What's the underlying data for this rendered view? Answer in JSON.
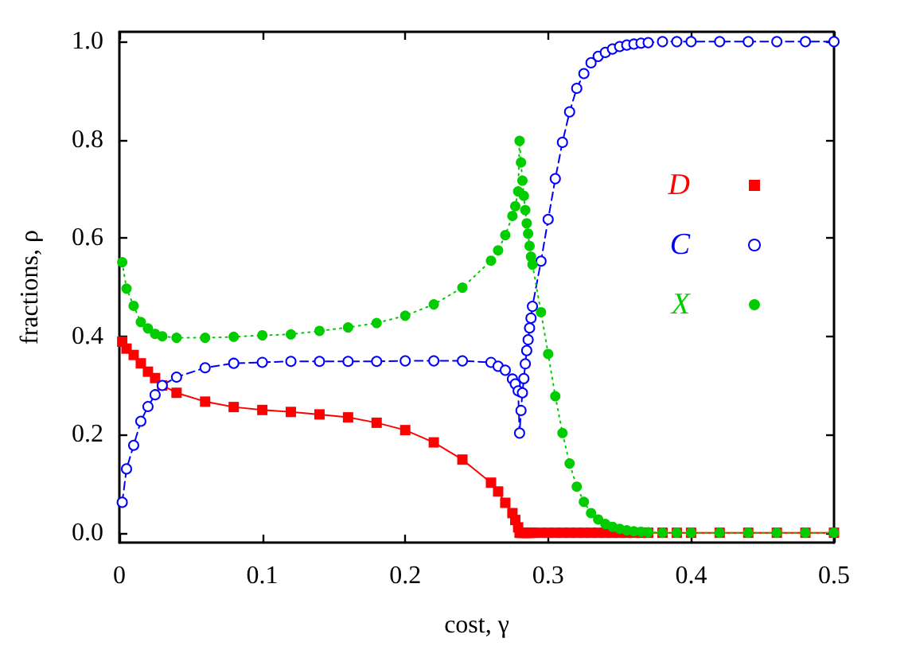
{
  "chart_data": {
    "type": "line",
    "xlabel": "cost, γ",
    "ylabel": "fractions, ρ",
    "xlim": [
      0,
      0.5
    ],
    "xticks": [
      0,
      0.1,
      0.2,
      0.3,
      0.4,
      0.5
    ],
    "ylim": [
      -0.02,
      1.02
    ],
    "yticks": [
      {
        "value": 0,
        "label": "0.0"
      },
      0.2,
      0.4,
      0.6,
      0.8,
      {
        "value": 1,
        "label": "1.0"
      }
    ],
    "legend": "right",
    "series": [
      {
        "name": "D",
        "color": "#ff0000",
        "marker": "square",
        "line_style": "solid",
        "x": [
          0.002,
          0.005,
          0.01,
          0.015,
          0.02,
          0.025,
          0.03,
          0.04,
          0.06,
          0.08,
          0.1,
          0.12,
          0.14,
          0.16,
          0.18,
          0.2,
          0.22,
          0.24,
          0.26,
          0.265,
          0.27,
          0.275,
          0.277,
          0.279,
          0.28,
          0.281,
          0.282,
          0.283,
          0.284,
          0.285,
          0.286,
          0.287,
          0.288,
          0.289,
          0.295,
          0.3,
          0.305,
          0.31,
          0.315,
          0.32,
          0.325,
          0.33,
          0.335,
          0.34,
          0.345,
          0.35,
          0.355,
          0.36,
          0.365,
          0.37,
          0.38,
          0.39,
          0.4,
          0.42,
          0.44,
          0.46,
          0.48,
          0.5
        ],
        "values": [
          0.389,
          0.375,
          0.362,
          0.345,
          0.328,
          0.315,
          0.3,
          0.285,
          0.267,
          0.256,
          0.25,
          0.246,
          0.241,
          0.235,
          0.224,
          0.209,
          0.184,
          0.149,
          0.102,
          0.084,
          0.061,
          0.04,
          0.026,
          0.011,
          0,
          0,
          0,
          0,
          0,
          0,
          0,
          0,
          0,
          0,
          0,
          0,
          0,
          0,
          0,
          0,
          0,
          0,
          0,
          0,
          0,
          0,
          0,
          0,
          0,
          0,
          0,
          0,
          0,
          0,
          0,
          0,
          0,
          0
        ]
      },
      {
        "name": "C",
        "color": "#0000ff",
        "marker": "open circle",
        "line_style": "dashed",
        "x": [
          0.002,
          0.005,
          0.01,
          0.015,
          0.02,
          0.025,
          0.03,
          0.04,
          0.06,
          0.08,
          0.1,
          0.12,
          0.14,
          0.16,
          0.18,
          0.2,
          0.22,
          0.24,
          0.26,
          0.265,
          0.27,
          0.275,
          0.277,
          0.279,
          0.28,
          0.281,
          0.282,
          0.283,
          0.284,
          0.285,
          0.286,
          0.287,
          0.288,
          0.289,
          0.295,
          0.3,
          0.305,
          0.31,
          0.315,
          0.32,
          0.325,
          0.33,
          0.335,
          0.34,
          0.345,
          0.35,
          0.355,
          0.36,
          0.365,
          0.37,
          0.38,
          0.39,
          0.4,
          0.42,
          0.44,
          0.46,
          0.48,
          0.5
        ],
        "values": [
          0.062,
          0.13,
          0.178,
          0.227,
          0.257,
          0.281,
          0.3,
          0.317,
          0.336,
          0.345,
          0.347,
          0.349,
          0.349,
          0.349,
          0.349,
          0.35,
          0.35,
          0.35,
          0.347,
          0.339,
          0.331,
          0.313,
          0.303,
          0.289,
          0.203,
          0.249,
          0.285,
          0.314,
          0.344,
          0.371,
          0.393,
          0.417,
          0.437,
          0.461,
          0.553,
          0.638,
          0.721,
          0.795,
          0.857,
          0.905,
          0.935,
          0.957,
          0.97,
          0.978,
          0.985,
          0.99,
          0.993,
          0.995,
          0.997,
          0.998,
          1.0,
          1.0,
          1.0,
          1.0,
          1.0,
          1.0,
          1.0,
          1.0
        ]
      },
      {
        "name": "X",
        "color": "#00cc00",
        "marker": "circle",
        "line_style": "dotted",
        "x": [
          0.002,
          0.005,
          0.01,
          0.015,
          0.02,
          0.025,
          0.03,
          0.04,
          0.06,
          0.08,
          0.1,
          0.12,
          0.14,
          0.16,
          0.18,
          0.2,
          0.22,
          0.24,
          0.26,
          0.265,
          0.27,
          0.275,
          0.277,
          0.279,
          0.28,
          0.281,
          0.282,
          0.283,
          0.284,
          0.285,
          0.286,
          0.287,
          0.288,
          0.289,
          0.295,
          0.3,
          0.305,
          0.31,
          0.315,
          0.32,
          0.325,
          0.33,
          0.335,
          0.34,
          0.345,
          0.35,
          0.355,
          0.36,
          0.365,
          0.37,
          0.38,
          0.39,
          0.4,
          0.42,
          0.44,
          0.46,
          0.48,
          0.5
        ],
        "values": [
          0.551,
          0.497,
          0.462,
          0.429,
          0.416,
          0.405,
          0.4,
          0.397,
          0.397,
          0.399,
          0.402,
          0.404,
          0.411,
          0.418,
          0.427,
          0.442,
          0.465,
          0.499,
          0.554,
          0.575,
          0.606,
          0.645,
          0.665,
          0.695,
          0.798,
          0.754,
          0.717,
          0.686,
          0.657,
          0.63,
          0.609,
          0.584,
          0.562,
          0.546,
          0.449,
          0.364,
          0.278,
          0.203,
          0.141,
          0.094,
          0.063,
          0.04,
          0.027,
          0.018,
          0.012,
          0.008,
          0.005,
          0.003,
          0.002,
          0.001,
          0,
          0,
          0,
          0,
          0,
          0,
          0,
          0
        ]
      }
    ]
  }
}
